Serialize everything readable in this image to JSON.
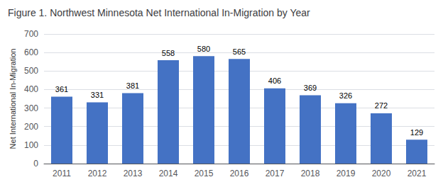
{
  "chart_data": {
    "type": "bar",
    "title": "Figure 1. Northwest Minnesota Net International In-Migration by Year",
    "categories": [
      "2011",
      "2012",
      "2013",
      "2014",
      "2015",
      "2016",
      "2017",
      "2018",
      "2019",
      "2020",
      "2021"
    ],
    "values": [
      361,
      331,
      381,
      558,
      580,
      565,
      406,
      369,
      326,
      272,
      129
    ],
    "color": "#4472C4",
    "ylabel": "Net International In-Migration",
    "ylim": [
      0,
      700
    ],
    "yticks": [
      0,
      100,
      200,
      300,
      400,
      500,
      600,
      700
    ],
    "grid": true,
    "data_labels": true
  }
}
